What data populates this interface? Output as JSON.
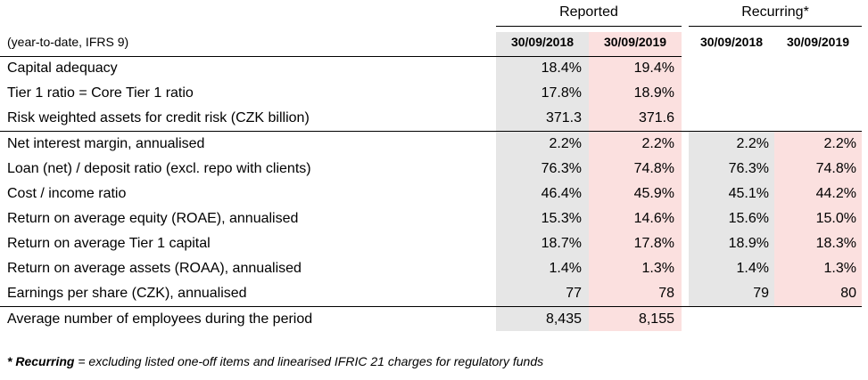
{
  "groups": {
    "reported": "Reported",
    "recurring": "Recurring*"
  },
  "subtitle": "(year-to-date, IFRS 9)",
  "dates": {
    "reported": [
      "30/09/2018",
      "30/09/2019"
    ],
    "recurring": [
      "30/09/2018",
      "30/09/2019"
    ]
  },
  "rows": [
    {
      "label": "Capital adequacy",
      "rep2018": "18.4%",
      "rep2019": "19.4%",
      "rec2018": "",
      "rec2019": ""
    },
    {
      "label": "Tier 1 ratio = Core Tier 1 ratio",
      "rep2018": "17.8%",
      "rep2019": "18.9%",
      "rec2018": "",
      "rec2019": ""
    },
    {
      "label": "Risk weighted assets for credit risk (CZK billion)",
      "rep2018": "371.3",
      "rep2019": "371.6",
      "rec2018": "",
      "rec2019": ""
    },
    {
      "label": "Net interest margin, annualised",
      "rep2018": "2.2%",
      "rep2019": "2.2%",
      "rec2018": "2.2%",
      "rec2019": "2.2%"
    },
    {
      "label": "Loan (net) / deposit ratio (excl. repo with clients)",
      "rep2018": "76.3%",
      "rep2019": "74.8%",
      "rec2018": "76.3%",
      "rec2019": "74.8%"
    },
    {
      "label": "Cost / income ratio",
      "rep2018": "46.4%",
      "rep2019": "45.9%",
      "rec2018": "45.1%",
      "rec2019": "44.2%"
    },
    {
      "label": "Return on average equity (ROAE), annualised",
      "rep2018": "15.3%",
      "rep2019": "14.6%",
      "rec2018": "15.6%",
      "rec2019": "15.0%"
    },
    {
      "label": "Return on average Tier 1 capital",
      "rep2018": "18.7%",
      "rep2019": "17.8%",
      "rec2018": "18.9%",
      "rec2019": "18.3%"
    },
    {
      "label": "Return on average assets (ROAA), annualised",
      "rep2018": "1.4%",
      "rep2019": "1.3%",
      "rec2018": "1.4%",
      "rec2019": "1.3%"
    },
    {
      "label": "Earnings per share (CZK), annualised",
      "rep2018": "77",
      "rep2019": "78",
      "rec2018": "79",
      "rec2019": "80"
    },
    {
      "label": "Average number of employees during the period",
      "rep2018": "8,435",
      "rep2019": "8,155",
      "rec2018": "",
      "rec2019": ""
    }
  ],
  "footnote": {
    "bold": "* Recurring",
    "text": " = excluding listed one-off items and linearised IFRIC 21 charges for regulatory funds"
  },
  "colors": {
    "grey_col": "#e6e6e6",
    "pink_col": "#fbe0df"
  }
}
